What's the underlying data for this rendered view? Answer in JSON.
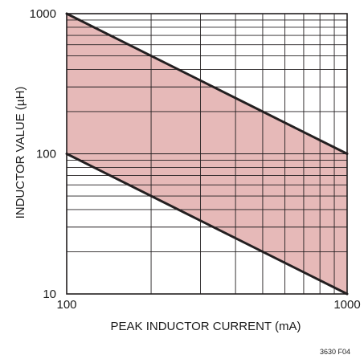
{
  "chart_data": {
    "type": "area",
    "x_scale": "log",
    "y_scale": "log",
    "xlim": [
      100,
      1000
    ],
    "ylim": [
      10,
      1000
    ],
    "xlabel": "PEAK INDUCTOR CURRENT (mA)",
    "ylabel": "INDUCTOR VALUE (µH)",
    "x_tick_labels": [
      "100",
      "1000"
    ],
    "y_tick_labels": [
      "10",
      "100",
      "1000"
    ],
    "grid": true,
    "fill_color": "#e6b9b8",
    "line_color": "#231f20",
    "grid_color": "#231f20",
    "region": {
      "upper_boundary": {
        "x": [
          100,
          1000
        ],
        "y": [
          1000,
          100
        ]
      },
      "lower_boundary": {
        "x": [
          100,
          1000
        ],
        "y": [
          100,
          10
        ]
      }
    }
  },
  "figure_id": "3630 F04"
}
